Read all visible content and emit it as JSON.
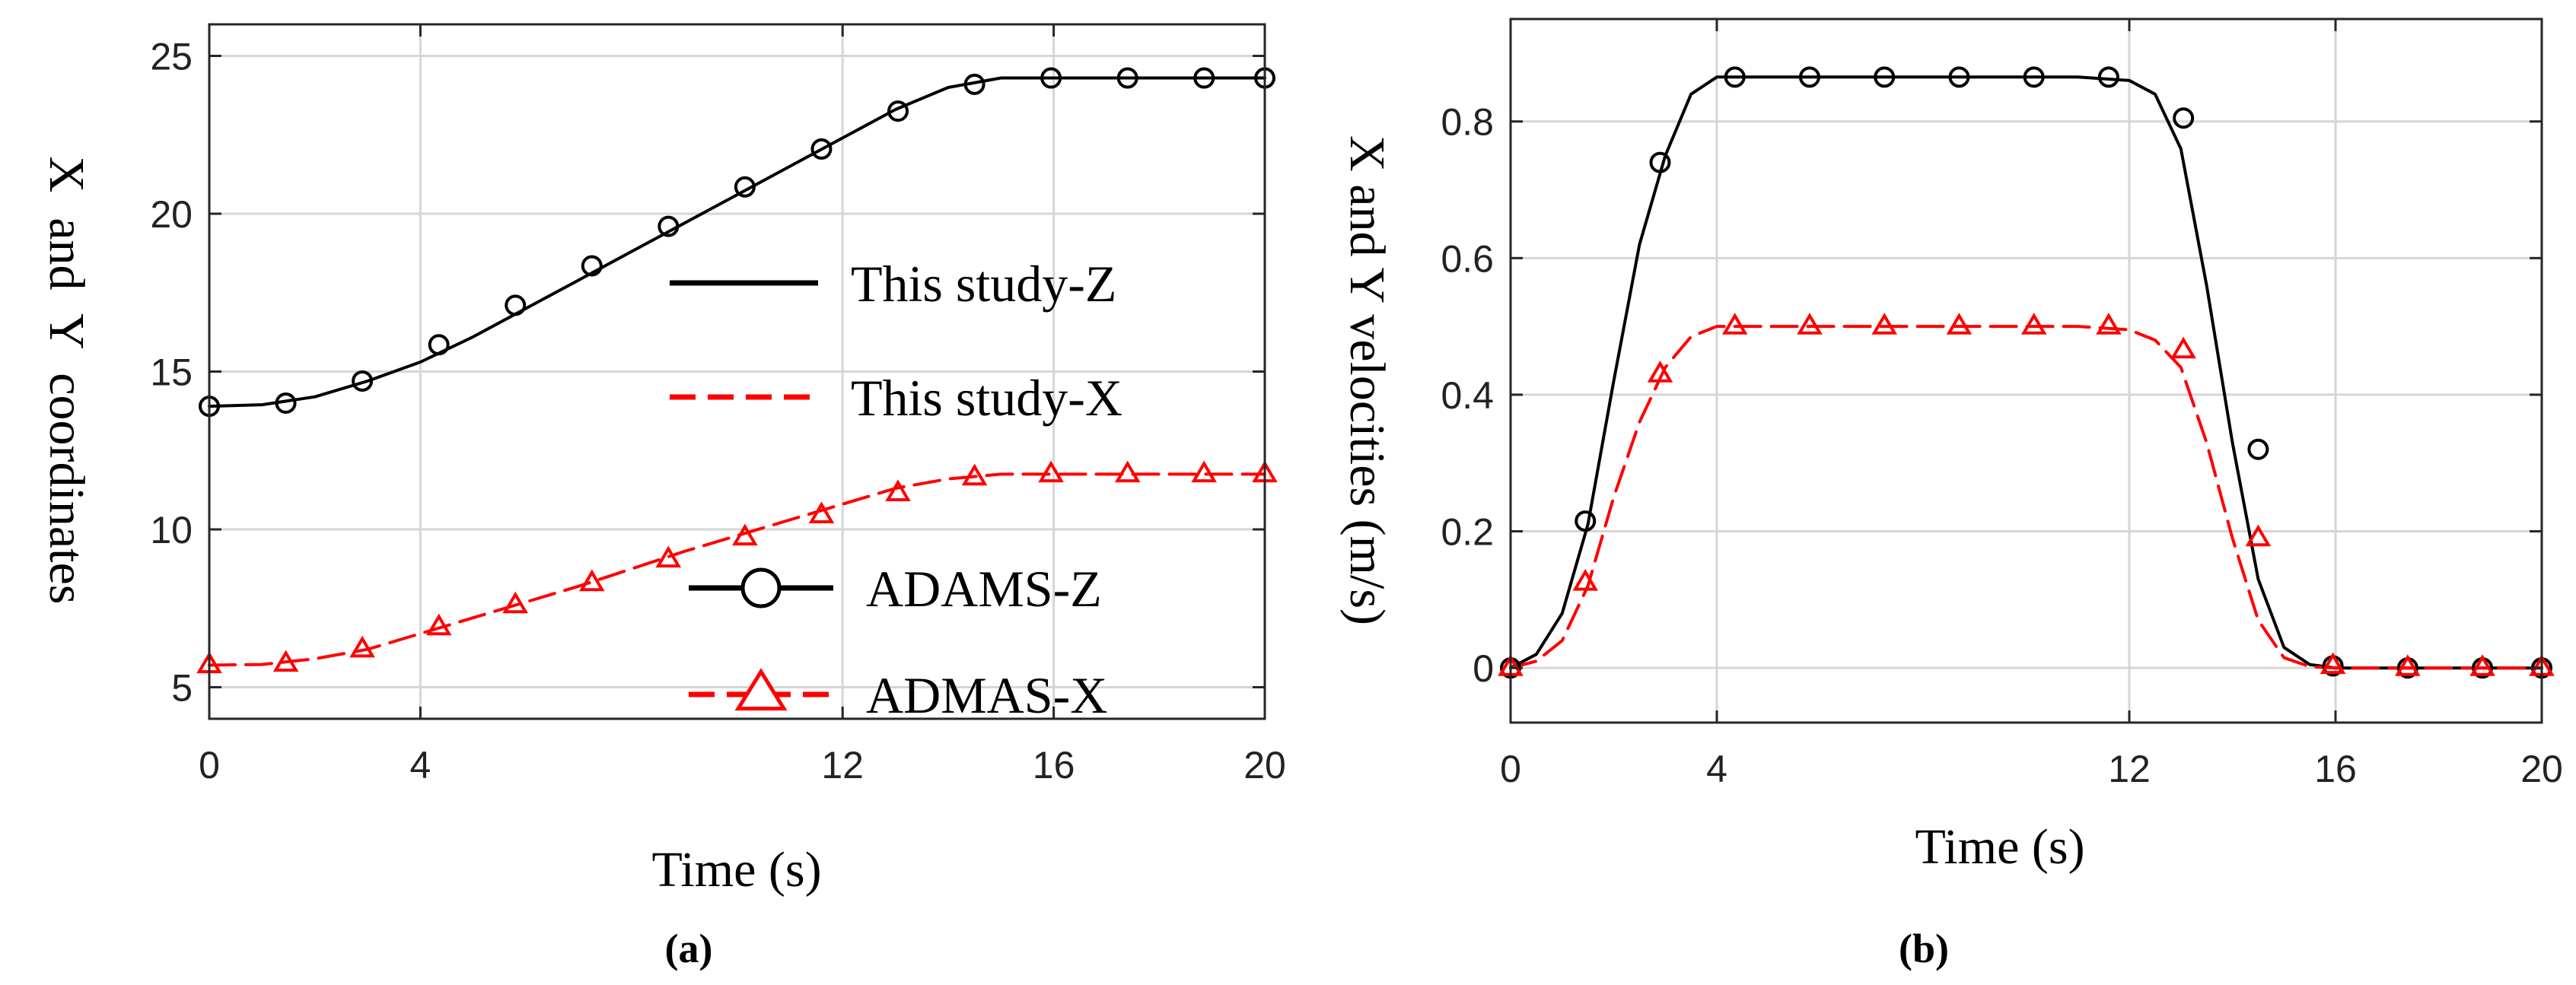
{
  "colors": {
    "black_series": "#000000",
    "red_series": "#ff0000",
    "grid": "#d6d6d6",
    "axis": "#262626"
  },
  "chart_data": [
    {
      "type": "line",
      "panel_label": "(a)",
      "xlabel": "Time (s)",
      "ylabel": "X  and  Y  coordinates",
      "xlim": [
        0,
        20
      ],
      "ylim": [
        4,
        26
      ],
      "xticks": [
        0,
        4,
        12,
        16,
        20
      ],
      "yticks": [
        5,
        10,
        15,
        20,
        25
      ],
      "grid": true,
      "legend_position": "middle-right",
      "legend": [
        {
          "label": "This study-Z",
          "style": "solid-line",
          "color": "#000000"
        },
        {
          "label": "This study-X",
          "style": "dashed-line",
          "color": "#ff0000"
        },
        {
          "label": "ADAMS-Z",
          "style": "solid-circle",
          "color": "#000000"
        },
        {
          "label": "ADMAS-X",
          "style": "dashed-triangle",
          "color": "#ff0000"
        }
      ],
      "series": [
        {
          "name": "This study-Z",
          "color": "#000000",
          "dash": "solid",
          "marker": "none",
          "x": [
            0,
            1,
            2,
            3,
            4,
            5,
            6,
            7,
            8,
            9,
            10,
            11,
            12,
            13,
            14,
            15,
            16,
            17,
            18,
            19,
            20
          ],
          "y": [
            13.9,
            13.95,
            14.2,
            14.7,
            15.3,
            16.1,
            17.0,
            17.9,
            18.8,
            19.7,
            20.6,
            21.5,
            22.4,
            23.3,
            24.0,
            24.3,
            24.3,
            24.3,
            24.3,
            24.3,
            24.3
          ]
        },
        {
          "name": "This study-X",
          "color": "#ff0000",
          "dash": "dashed",
          "marker": "none",
          "x": [
            0,
            1,
            2,
            3,
            4,
            5,
            6,
            7,
            8,
            9,
            10,
            11,
            12,
            13,
            14,
            15,
            16,
            17,
            18,
            19,
            20
          ],
          "y": [
            5.7,
            5.72,
            5.9,
            6.2,
            6.7,
            7.2,
            7.7,
            8.2,
            8.75,
            9.3,
            9.8,
            10.3,
            10.8,
            11.3,
            11.6,
            11.75,
            11.75,
            11.75,
            11.75,
            11.75,
            11.75
          ]
        },
        {
          "name": "ADAMS-Z",
          "color": "#000000",
          "dash": "none",
          "marker": "circle",
          "x": [
            0,
            1.45,
            2.9,
            4.35,
            5.8,
            7.25,
            8.7,
            10.15,
            11.6,
            13.05,
            14.5,
            15.95,
            17.4,
            18.85,
            20
          ],
          "y": [
            13.9,
            14.0,
            14.7,
            15.85,
            17.1,
            18.35,
            19.6,
            20.85,
            22.05,
            23.25,
            24.1,
            24.3,
            24.3,
            24.3,
            24.3
          ]
        },
        {
          "name": "ADMAS-X",
          "color": "#ff0000",
          "dash": "none",
          "marker": "triangle",
          "x": [
            0,
            1.45,
            2.9,
            4.35,
            5.8,
            7.25,
            8.7,
            10.15,
            11.6,
            13.05,
            14.5,
            15.95,
            17.4,
            18.85,
            20
          ],
          "y": [
            5.7,
            5.75,
            6.2,
            6.9,
            7.6,
            8.3,
            9.05,
            9.75,
            10.45,
            11.15,
            11.65,
            11.75,
            11.75,
            11.75,
            11.75
          ]
        }
      ]
    },
    {
      "type": "line",
      "panel_label": "(b)",
      "xlabel": "Time (s)",
      "ylabel": "X and Y velocities (m/s)",
      "xlim": [
        0,
        20
      ],
      "ylim": [
        -0.08,
        0.95
      ],
      "xticks": [
        0,
        4,
        12,
        16,
        20
      ],
      "yticks": [
        0,
        0.2,
        0.4,
        0.6,
        0.8
      ],
      "grid": true,
      "series": [
        {
          "name": "This study-Z",
          "color": "#000000",
          "dash": "solid",
          "marker": "none",
          "x": [
            0,
            0.5,
            1,
            1.5,
            2,
            2.5,
            3,
            3.5,
            4,
            5,
            6,
            7,
            8,
            9,
            10,
            11,
            12,
            12.5,
            13,
            13.5,
            14,
            14.5,
            15,
            15.5,
            16,
            17,
            18,
            19,
            20
          ],
          "y": [
            0,
            0.02,
            0.08,
            0.21,
            0.42,
            0.62,
            0.75,
            0.84,
            0.865,
            0.865,
            0.865,
            0.865,
            0.865,
            0.865,
            0.865,
            0.865,
            0.86,
            0.84,
            0.76,
            0.56,
            0.33,
            0.13,
            0.03,
            0.005,
            0,
            0,
            0,
            0,
            0
          ]
        },
        {
          "name": "This study-X",
          "color": "#ff0000",
          "dash": "dashed",
          "marker": "none",
          "x": [
            0,
            0.5,
            1,
            1.5,
            2,
            2.5,
            3,
            3.5,
            4,
            5,
            6,
            7,
            8,
            9,
            10,
            11,
            12,
            12.5,
            13,
            13.5,
            14,
            14.5,
            15,
            15.5,
            16,
            17,
            18,
            19,
            20
          ],
          "y": [
            0,
            0.01,
            0.04,
            0.12,
            0.25,
            0.36,
            0.44,
            0.485,
            0.5,
            0.5,
            0.5,
            0.5,
            0.5,
            0.5,
            0.5,
            0.5,
            0.495,
            0.48,
            0.44,
            0.33,
            0.19,
            0.07,
            0.015,
            0.002,
            0,
            0,
            0,
            0,
            0
          ]
        },
        {
          "name": "ADAMS-Z",
          "color": "#000000",
          "dash": "none",
          "marker": "circle",
          "x": [
            0,
            1.45,
            2.9,
            4.35,
            5.8,
            7.25,
            8.7,
            10.15,
            11.6,
            13.05,
            14.5,
            15.95,
            17.4,
            18.85,
            20
          ],
          "y": [
            0,
            0.215,
            0.74,
            0.865,
            0.865,
            0.865,
            0.865,
            0.865,
            0.865,
            0.805,
            0.32,
            0.003,
            0,
            0,
            0
          ]
        },
        {
          "name": "ADMAS-X",
          "color": "#ff0000",
          "dash": "none",
          "marker": "triangle",
          "x": [
            0,
            1.45,
            2.9,
            4.35,
            5.8,
            7.25,
            8.7,
            10.15,
            11.6,
            13.05,
            14.5,
            15.95,
            17.4,
            18.85,
            20
          ],
          "y": [
            0,
            0.125,
            0.43,
            0.5,
            0.5,
            0.5,
            0.5,
            0.5,
            0.5,
            0.465,
            0.19,
            0.003,
            0,
            0,
            0
          ]
        }
      ]
    }
  ]
}
